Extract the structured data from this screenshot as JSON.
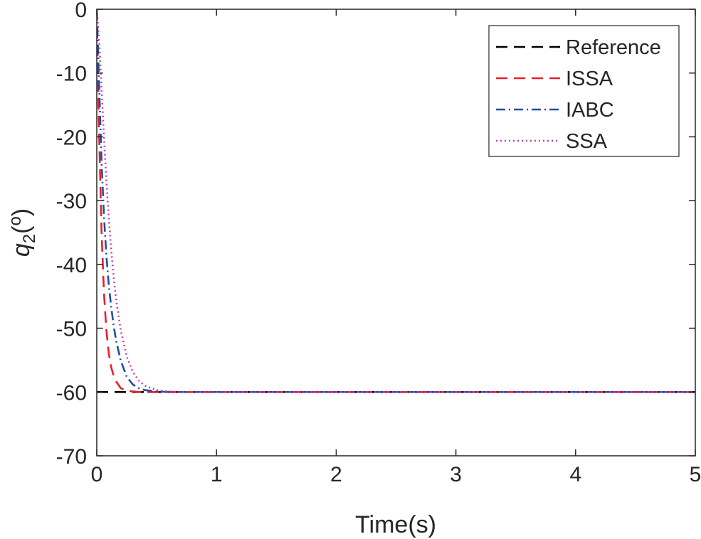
{
  "chart_data": {
    "type": "line",
    "title": "",
    "xlabel": "Time(s)",
    "ylabel": {
      "base": "q",
      "subscript": "2",
      "unit_open": "(",
      "unit_sup": "o",
      "unit_close": ")"
    },
    "xlim": [
      0,
      5
    ],
    "ylim": [
      -70,
      0
    ],
    "xticks": [
      "0",
      "1",
      "2",
      "3",
      "4",
      "5"
    ],
    "yticks": [
      "0",
      "-10",
      "-20",
      "-30",
      "-40",
      "-50",
      "-60",
      "-70"
    ],
    "grid": false,
    "legend_position": "top-right",
    "series": [
      {
        "name": "Reference",
        "color": "#000000",
        "dash": "dashed",
        "x": [
          0,
          5
        ],
        "y": [
          -60,
          -60
        ]
      },
      {
        "name": "ISSA",
        "color": "#e8202a",
        "dash": "dashed",
        "x": [
          0,
          0.02,
          0.04,
          0.06,
          0.08,
          0.1,
          0.12,
          0.14,
          0.16,
          0.2,
          0.25,
          0.3,
          0.35,
          0.4,
          0.5,
          0.7,
          1,
          2,
          3,
          4,
          5
        ],
        "y": [
          0,
          -20,
          -35,
          -44.5,
          -50.3,
          -53.9,
          -56.1,
          -57.4,
          -58.3,
          -59.4,
          -59.8,
          -59.9,
          -60,
          -60,
          -60,
          -60,
          -60,
          -60,
          -60,
          -60,
          -60
        ]
      },
      {
        "name": "IABC",
        "color": "#1f4ea3",
        "dash": "dashdot",
        "x": [
          0,
          0.02,
          0.04,
          0.06,
          0.08,
          0.1,
          0.12,
          0.14,
          0.16,
          0.2,
          0.25,
          0.3,
          0.35,
          0.4,
          0.5,
          0.6,
          0.7,
          1,
          2,
          3,
          4,
          5
        ],
        "y": [
          0,
          -12,
          -24,
          -32.4,
          -38.6,
          -43.2,
          -46.6,
          -49.5,
          -51.8,
          -55.1,
          -57.6,
          -58.8,
          -59.4,
          -59.7,
          -59.9,
          -60,
          -60,
          -60,
          -60,
          -60,
          -60,
          -60
        ]
      },
      {
        "name": "SSA",
        "color": "#bd43b6",
        "dash": "dotted",
        "x": [
          0,
          0.02,
          0.04,
          0.06,
          0.08,
          0.1,
          0.12,
          0.14,
          0.16,
          0.2,
          0.25,
          0.3,
          0.35,
          0.4,
          0.5,
          0.6,
          0.7,
          0.8,
          1,
          2,
          3,
          4,
          5
        ],
        "y": [
          0,
          -5,
          -12.5,
          -20,
          -26.8,
          -32.7,
          -37.6,
          -41.8,
          -45.3,
          -50.3,
          -54.4,
          -56.8,
          -58.2,
          -59,
          -59.7,
          -59.9,
          -60,
          -60,
          -60,
          -60,
          -60,
          -60,
          -60
        ]
      }
    ]
  }
}
